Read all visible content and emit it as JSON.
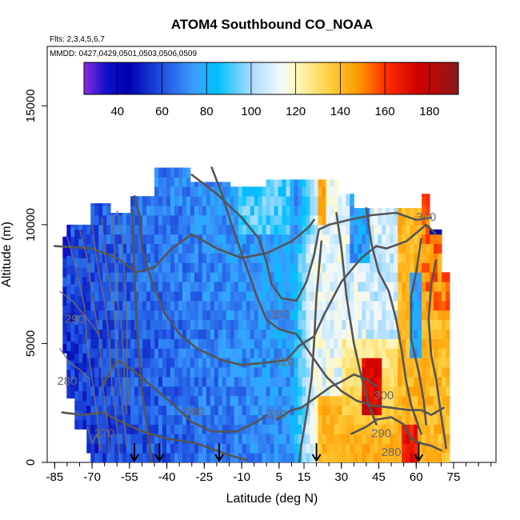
{
  "chart_data": {
    "type": "heatmap",
    "title": "ATOM4 Southbound CO_NOAA",
    "subtitle_flights": "Flts: 2,3,4,5,6,7",
    "subtitle_dates": "MMDD: 0427,0429,0501,0503,0506,0509",
    "xlabel": "Latitude (deg N)",
    "ylabel": "Altitude (m)",
    "xlim": [
      -88,
      92
    ],
    "ylim": [
      0,
      17500
    ],
    "x_ticks": [
      -85,
      -70,
      -55,
      -40,
      -25,
      -10,
      5,
      15,
      30,
      45,
      60,
      75
    ],
    "x_minor_step": 5,
    "y_ticks": [
      0,
      5000,
      10000,
      15000
    ],
    "colorbar": {
      "range": [
        25,
        193
      ],
      "ticks": [
        40,
        60,
        80,
        100,
        120,
        140,
        160,
        180
      ],
      "stops": [
        [
          25,
          "#8a2be2"
        ],
        [
          35,
          "#1010c8"
        ],
        [
          45,
          "#0000b0"
        ],
        [
          60,
          "#2050e0"
        ],
        [
          75,
          "#3aa0ff"
        ],
        [
          85,
          "#00c0ff"
        ],
        [
          100,
          "#a8dcff"
        ],
        [
          113,
          "#f0f8ff"
        ],
        [
          120,
          "#fff8c0"
        ],
        [
          135,
          "#ffd040"
        ],
        [
          148,
          "#ff9a00"
        ],
        [
          160,
          "#ff3000"
        ],
        [
          175,
          "#d00000"
        ],
        [
          193,
          "#8a1a1a"
        ]
      ]
    },
    "contour_labels": [
      {
        "text": "340",
        "lat": 64,
        "alt": 10300
      },
      {
        "text": "330",
        "lat": 5,
        "alt": 6200
      },
      {
        "text": "320",
        "lat": 7,
        "alt": 4200
      },
      {
        "text": "310",
        "lat": 4,
        "alt": 2000
      },
      {
        "text": "300",
        "lat": -29,
        "alt": 2100
      },
      {
        "text": "300",
        "lat": 47,
        "alt": 2800
      },
      {
        "text": "290",
        "lat": -77,
        "alt": 6000
      },
      {
        "text": "290",
        "lat": 46,
        "alt": 1200
      },
      {
        "text": "280",
        "lat": -80,
        "alt": 3400
      },
      {
        "text": "280",
        "lat": 50,
        "alt": 400
      },
      {
        "text": "270",
        "lat": -65,
        "alt": 1200
      }
    ],
    "arrows_lat": [
      -53,
      -43,
      -19,
      20,
      61
    ]
  }
}
